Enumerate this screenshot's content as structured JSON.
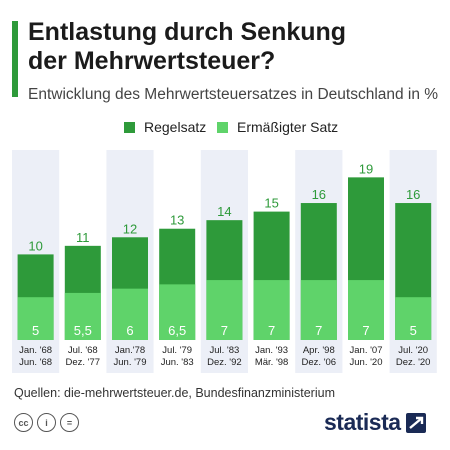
{
  "header": {
    "title_line1": "Entlastung durch Senkung",
    "title_line2": "der Mehrwertsteuer?",
    "subtitle": "Entwicklung des Mehrwertsteuersatzes in Deutschland in %"
  },
  "legend": {
    "regelsatz": "Regelsatz",
    "ermaessigt": "Ermäßigter Satz"
  },
  "colors": {
    "regelsatz": "#2e9a3a",
    "ermaessigt": "#5fd36a",
    "band": "#eceff7",
    "title_accent": "#2e9a3a",
    "logo": "#1a2a55"
  },
  "chart_data": {
    "type": "bar",
    "title": "Entlastung durch Senkung der Mehrwertsteuer?",
    "subtitle": "Entwicklung des Mehrwertsteuersatzes in Deutschland in %",
    "categories": [
      [
        "Jan. '68",
        "Jun. '68"
      ],
      [
        "Jul. '68",
        "Dez. '77"
      ],
      [
        "Jan.'78",
        "Jun. '79"
      ],
      [
        "Jul. '79",
        "Jun. '83"
      ],
      [
        "Jul. '83",
        "Dez. '92"
      ],
      [
        "Jan. '93",
        "Mär. '98"
      ],
      [
        "Apr. '98",
        "Dez. '06"
      ],
      [
        "Jan. '07",
        "Jun. '20"
      ],
      [
        "Jul. '20",
        "Dez. '20"
      ]
    ],
    "series": [
      {
        "name": "Regelsatz",
        "values": [
          10,
          11,
          12,
          13,
          14,
          15,
          16,
          19,
          16
        ],
        "labels": [
          "10",
          "11",
          "12",
          "13",
          "14",
          "15",
          "16",
          "19",
          "16"
        ]
      },
      {
        "name": "Ermäßigter Satz",
        "values": [
          5,
          5.5,
          6,
          6.5,
          7,
          7,
          7,
          7,
          5
        ],
        "labels": [
          "5",
          "5,5",
          "6",
          "6,5",
          "7",
          "7",
          "7",
          "7",
          "5"
        ]
      }
    ],
    "ylim": [
      0,
      20
    ],
    "grid": false,
    "legend_position": "top"
  },
  "footer": {
    "source": "Quellen: die-mehrwertsteuer.de, Bundesfinanzministerium",
    "logo": "statista",
    "cc_icons": [
      "cc",
      "i",
      "="
    ]
  }
}
